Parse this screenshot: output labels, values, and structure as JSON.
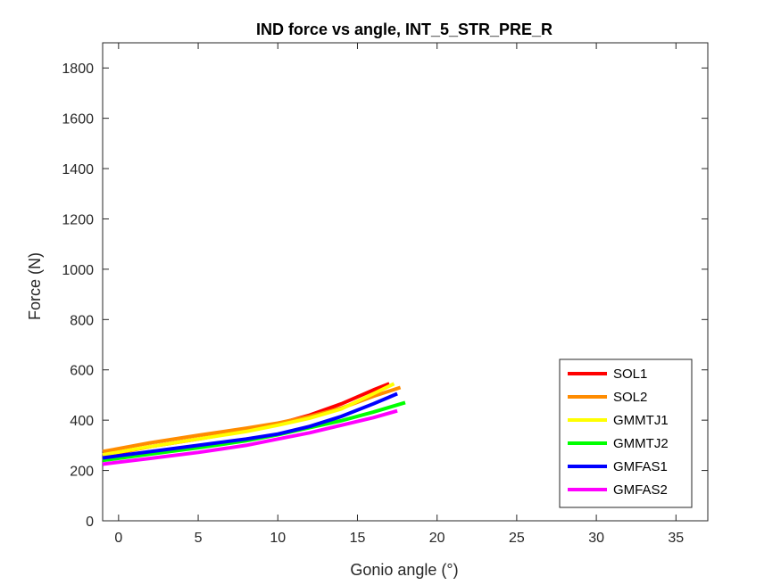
{
  "chart_data": {
    "type": "line",
    "title": "IND force vs angle, INT_5_STR_PRE_R",
    "xlabel": "Gonio angle (°)",
    "ylabel": "Force (N)",
    "xlim": [
      -1,
      37
    ],
    "ylim": [
      0,
      1900
    ],
    "xticks": [
      0,
      5,
      10,
      15,
      20,
      25,
      30,
      35
    ],
    "yticks": [
      0,
      200,
      400,
      600,
      800,
      1000,
      1200,
      1400,
      1600,
      1800
    ],
    "grid": false,
    "legend_position": "bottom-right",
    "series": [
      {
        "name": "SOL1",
        "color": "#ff0000",
        "x": [
          -1,
          2,
          5,
          8,
          10,
          12,
          14,
          16,
          17
        ],
        "y": [
          258,
          295,
          325,
          358,
          385,
          420,
          465,
          520,
          545
        ]
      },
      {
        "name": "SOL2",
        "color": "#ff8c00",
        "x": [
          -1,
          2,
          5,
          8,
          10,
          12,
          14,
          16,
          17.7
        ],
        "y": [
          275,
          310,
          340,
          368,
          388,
          415,
          448,
          495,
          530
        ]
      },
      {
        "name": "GMMTJ1",
        "color": "#ffff00",
        "x": [
          -1,
          2,
          5,
          8,
          10,
          12,
          14,
          16,
          17.3
        ],
        "y": [
          262,
          295,
          325,
          355,
          380,
          408,
          445,
          505,
          545
        ]
      },
      {
        "name": "GMMTJ2",
        "color": "#00ff00",
        "x": [
          -1,
          2,
          5,
          8,
          10,
          12,
          14,
          16,
          18
        ],
        "y": [
          240,
          265,
          290,
          318,
          342,
          370,
          398,
          432,
          470
        ]
      },
      {
        "name": "GMFAS1",
        "color": "#0000ff",
        "x": [
          -1,
          2,
          5,
          8,
          10,
          12,
          14,
          16,
          17.5
        ],
        "y": [
          250,
          275,
          300,
          325,
          345,
          375,
          415,
          465,
          505
        ]
      },
      {
        "name": "GMFAS2",
        "color": "#ff00ff",
        "x": [
          -1,
          2,
          5,
          8,
          10,
          12,
          14,
          16,
          17.5
        ],
        "y": [
          225,
          248,
          272,
          300,
          325,
          350,
          380,
          410,
          437
        ]
      }
    ]
  }
}
